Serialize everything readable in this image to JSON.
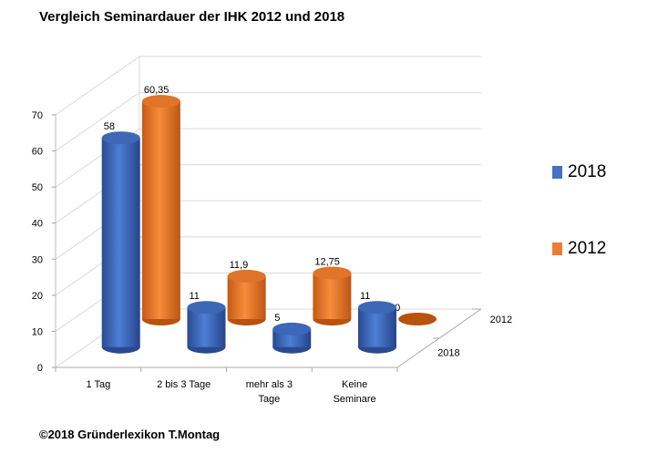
{
  "chart_data": {
    "type": "bar",
    "title": "Vergleich Seminardauer der IHK  2012 und 2018",
    "categories": [
      "1 Tag",
      "2 bis 3 Tage",
      "mehr als 3 Tage",
      "Keine Seminare"
    ],
    "category_lines": [
      [
        "1 Tag"
      ],
      [
        "2 bis 3 Tage"
      ],
      [
        "mehr als 3",
        "Tage"
      ],
      [
        "Keine",
        "Seminare"
      ]
    ],
    "series": [
      {
        "name": "2018",
        "color": "#4472c4",
        "values": [
          58,
          11,
          5,
          11
        ],
        "labels": [
          "58",
          "11",
          "5",
          "11"
        ]
      },
      {
        "name": "2012",
        "color": "#ed7d31",
        "values": [
          60.35,
          11.9,
          12.75,
          0
        ],
        "labels": [
          "60,35",
          "11,9",
          "12,75",
          "0"
        ]
      }
    ],
    "yticks": [
      0,
      10,
      20,
      30,
      40,
      50,
      60,
      70
    ],
    "ylim": [
      0,
      70
    ],
    "depth_labels": [
      "2018",
      "2012"
    ],
    "legend": "right",
    "grid": true
  },
  "footer": "©2018 Gründerlexikon T.Montag"
}
